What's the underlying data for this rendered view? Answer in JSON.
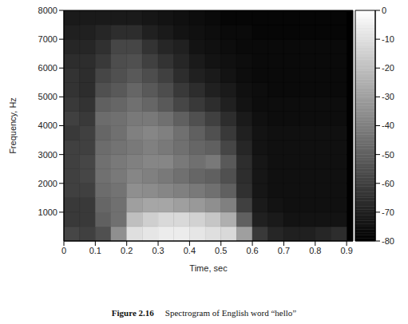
{
  "chart_data": {
    "type": "heatmap",
    "x_label": "Time, sec",
    "y_label": "Frequency, Hz",
    "caption_label": "Figure 2.16",
    "caption": "Spectrogram of English word “hello”",
    "xlim": [
      0,
      0.92
    ],
    "xticks": [
      0,
      0.1,
      0.2,
      0.3,
      0.4,
      0.5,
      0.6,
      0.7,
      0.8,
      0.9
    ],
    "ylim": [
      0,
      8000
    ],
    "yticks": [
      1000,
      2000,
      3000,
      4000,
      5000,
      6000,
      7000,
      8000
    ],
    "time_bins": [
      0,
      0.05,
      0.1,
      0.15,
      0.2,
      0.25,
      0.3,
      0.35,
      0.4,
      0.45,
      0.5,
      0.55,
      0.6,
      0.65,
      0.7,
      0.75,
      0.8,
      0.85,
      0.9
    ],
    "freq_bins": [
      0,
      500,
      1000,
      1500,
      2000,
      2500,
      3000,
      3500,
      4000,
      4500,
      5000,
      5500,
      6000,
      6500,
      7000,
      7500,
      8000
    ],
    "cells": [
      [
        -58,
        -60,
        -55,
        -35,
        -10,
        -8,
        -6,
        -6,
        -8,
        -10,
        -12,
        -30,
        -62,
        -68,
        -70,
        -70,
        -68,
        -66
      ],
      [
        -62,
        -62,
        -50,
        -45,
        -20,
        -15,
        -12,
        -12,
        -14,
        -18,
        -25,
        -50,
        -70,
        -72,
        -74,
        -74,
        -74,
        -74
      ],
      [
        -62,
        -62,
        -48,
        -45,
        -30,
        -28,
        -28,
        -30,
        -32,
        -35,
        -40,
        -60,
        -72,
        -74,
        -75,
        -75,
        -75,
        -75
      ],
      [
        -60,
        -60,
        -46,
        -44,
        -35,
        -36,
        -38,
        -40,
        -42,
        -45,
        -50,
        -65,
        -73,
        -75,
        -75,
        -75,
        -75,
        -75
      ],
      [
        -60,
        -58,
        -45,
        -42,
        -38,
        -40,
        -42,
        -45,
        -48,
        -50,
        -55,
        -66,
        -73,
        -75,
        -75,
        -75,
        -75,
        -75
      ],
      [
        -60,
        -58,
        -45,
        -42,
        -40,
        -38,
        -38,
        -42,
        -45,
        -42,
        -52,
        -66,
        -73,
        -75,
        -75,
        -75,
        -75,
        -75
      ],
      [
        -60,
        -60,
        -46,
        -44,
        -42,
        -40,
        -42,
        -45,
        -48,
        -50,
        -58,
        -68,
        -74,
        -75,
        -75,
        -75,
        -75,
        -75
      ],
      [
        -62,
        -60,
        -48,
        -45,
        -40,
        -38,
        -40,
        -45,
        -50,
        -55,
        -62,
        -70,
        -74,
        -75,
        -75,
        -75,
        -75,
        -75
      ],
      [
        -60,
        -62,
        -46,
        -45,
        -42,
        -42,
        -45,
        -50,
        -55,
        -60,
        -66,
        -72,
        -75,
        -76,
        -76,
        -76,
        -76,
        -76
      ],
      [
        -62,
        -64,
        -50,
        -48,
        -45,
        -48,
        -52,
        -58,
        -62,
        -66,
        -70,
        -74,
        -76,
        -76,
        -76,
        -76,
        -76,
        -76
      ],
      [
        -64,
        -66,
        -55,
        -52,
        -48,
        -52,
        -56,
        -62,
        -66,
        -70,
        -72,
        -75,
        -76,
        -77,
        -77,
        -77,
        -77,
        -77
      ],
      [
        -64,
        -66,
        -58,
        -55,
        -52,
        -56,
        -60,
        -66,
        -70,
        -72,
        -74,
        -76,
        -77,
        -77,
        -77,
        -77,
        -77,
        -77
      ],
      [
        -66,
        -66,
        -62,
        -56,
        -55,
        -60,
        -64,
        -68,
        -72,
        -74,
        -75,
        -76,
        -77,
        -77,
        -77,
        -77,
        -77,
        -77
      ],
      [
        -68,
        -68,
        -65,
        -58,
        -58,
        -64,
        -68,
        -70,
        -74,
        -75,
        -76,
        -77,
        -77,
        -77,
        -77,
        -77,
        -77,
        -77
      ],
      [
        -70,
        -70,
        -68,
        -66,
        -66,
        -70,
        -72,
        -74,
        -75,
        -76,
        -77,
        -77,
        -78,
        -78,
        -78,
        -78,
        -78,
        -78
      ],
      [
        -72,
        -72,
        -72,
        -72,
        -72,
        -73,
        -74,
        -75,
        -76,
        -77,
        -78,
        -78,
        -78,
        -78,
        -78,
        -78,
        -78,
        -78
      ]
    ],
    "colorbar_range": [
      -80,
      0
    ],
    "colorbar_ticks": [
      0,
      -10,
      -20,
      -30,
      -40,
      -50,
      -60,
      -70,
      -80
    ]
  }
}
